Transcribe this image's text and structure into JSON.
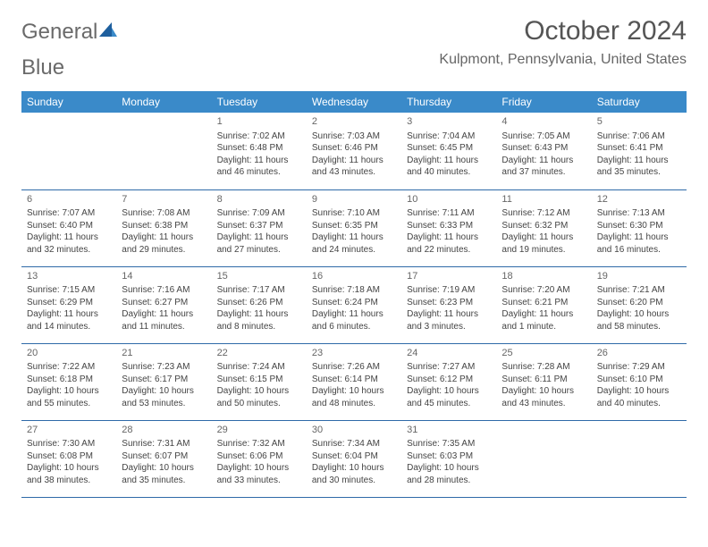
{
  "logo": {
    "word1": "General",
    "word2": "Blue"
  },
  "title": "October 2024",
  "location": "Kulpmont, Pennsylvania, United States",
  "colors": {
    "header_bg": "#3a8ac9",
    "rule": "#2f6aa8",
    "text": "#444444"
  },
  "weekdays": [
    "Sunday",
    "Monday",
    "Tuesday",
    "Wednesday",
    "Thursday",
    "Friday",
    "Saturday"
  ],
  "weeks": [
    [
      null,
      null,
      {
        "n": "1",
        "r": "Sunrise: 7:02 AM",
        "s": "Sunset: 6:48 PM",
        "d1": "Daylight: 11 hours",
        "d2": "and 46 minutes."
      },
      {
        "n": "2",
        "r": "Sunrise: 7:03 AM",
        "s": "Sunset: 6:46 PM",
        "d1": "Daylight: 11 hours",
        "d2": "and 43 minutes."
      },
      {
        "n": "3",
        "r": "Sunrise: 7:04 AM",
        "s": "Sunset: 6:45 PM",
        "d1": "Daylight: 11 hours",
        "d2": "and 40 minutes."
      },
      {
        "n": "4",
        "r": "Sunrise: 7:05 AM",
        "s": "Sunset: 6:43 PM",
        "d1": "Daylight: 11 hours",
        "d2": "and 37 minutes."
      },
      {
        "n": "5",
        "r": "Sunrise: 7:06 AM",
        "s": "Sunset: 6:41 PM",
        "d1": "Daylight: 11 hours",
        "d2": "and 35 minutes."
      }
    ],
    [
      {
        "n": "6",
        "r": "Sunrise: 7:07 AM",
        "s": "Sunset: 6:40 PM",
        "d1": "Daylight: 11 hours",
        "d2": "and 32 minutes."
      },
      {
        "n": "7",
        "r": "Sunrise: 7:08 AM",
        "s": "Sunset: 6:38 PM",
        "d1": "Daylight: 11 hours",
        "d2": "and 29 minutes."
      },
      {
        "n": "8",
        "r": "Sunrise: 7:09 AM",
        "s": "Sunset: 6:37 PM",
        "d1": "Daylight: 11 hours",
        "d2": "and 27 minutes."
      },
      {
        "n": "9",
        "r": "Sunrise: 7:10 AM",
        "s": "Sunset: 6:35 PM",
        "d1": "Daylight: 11 hours",
        "d2": "and 24 minutes."
      },
      {
        "n": "10",
        "r": "Sunrise: 7:11 AM",
        "s": "Sunset: 6:33 PM",
        "d1": "Daylight: 11 hours",
        "d2": "and 22 minutes."
      },
      {
        "n": "11",
        "r": "Sunrise: 7:12 AM",
        "s": "Sunset: 6:32 PM",
        "d1": "Daylight: 11 hours",
        "d2": "and 19 minutes."
      },
      {
        "n": "12",
        "r": "Sunrise: 7:13 AM",
        "s": "Sunset: 6:30 PM",
        "d1": "Daylight: 11 hours",
        "d2": "and 16 minutes."
      }
    ],
    [
      {
        "n": "13",
        "r": "Sunrise: 7:15 AM",
        "s": "Sunset: 6:29 PM",
        "d1": "Daylight: 11 hours",
        "d2": "and 14 minutes."
      },
      {
        "n": "14",
        "r": "Sunrise: 7:16 AM",
        "s": "Sunset: 6:27 PM",
        "d1": "Daylight: 11 hours",
        "d2": "and 11 minutes."
      },
      {
        "n": "15",
        "r": "Sunrise: 7:17 AM",
        "s": "Sunset: 6:26 PM",
        "d1": "Daylight: 11 hours",
        "d2": "and 8 minutes."
      },
      {
        "n": "16",
        "r": "Sunrise: 7:18 AM",
        "s": "Sunset: 6:24 PM",
        "d1": "Daylight: 11 hours",
        "d2": "and 6 minutes."
      },
      {
        "n": "17",
        "r": "Sunrise: 7:19 AM",
        "s": "Sunset: 6:23 PM",
        "d1": "Daylight: 11 hours",
        "d2": "and 3 minutes."
      },
      {
        "n": "18",
        "r": "Sunrise: 7:20 AM",
        "s": "Sunset: 6:21 PM",
        "d1": "Daylight: 11 hours",
        "d2": "and 1 minute."
      },
      {
        "n": "19",
        "r": "Sunrise: 7:21 AM",
        "s": "Sunset: 6:20 PM",
        "d1": "Daylight: 10 hours",
        "d2": "and 58 minutes."
      }
    ],
    [
      {
        "n": "20",
        "r": "Sunrise: 7:22 AM",
        "s": "Sunset: 6:18 PM",
        "d1": "Daylight: 10 hours",
        "d2": "and 55 minutes."
      },
      {
        "n": "21",
        "r": "Sunrise: 7:23 AM",
        "s": "Sunset: 6:17 PM",
        "d1": "Daylight: 10 hours",
        "d2": "and 53 minutes."
      },
      {
        "n": "22",
        "r": "Sunrise: 7:24 AM",
        "s": "Sunset: 6:15 PM",
        "d1": "Daylight: 10 hours",
        "d2": "and 50 minutes."
      },
      {
        "n": "23",
        "r": "Sunrise: 7:26 AM",
        "s": "Sunset: 6:14 PM",
        "d1": "Daylight: 10 hours",
        "d2": "and 48 minutes."
      },
      {
        "n": "24",
        "r": "Sunrise: 7:27 AM",
        "s": "Sunset: 6:12 PM",
        "d1": "Daylight: 10 hours",
        "d2": "and 45 minutes."
      },
      {
        "n": "25",
        "r": "Sunrise: 7:28 AM",
        "s": "Sunset: 6:11 PM",
        "d1": "Daylight: 10 hours",
        "d2": "and 43 minutes."
      },
      {
        "n": "26",
        "r": "Sunrise: 7:29 AM",
        "s": "Sunset: 6:10 PM",
        "d1": "Daylight: 10 hours",
        "d2": "and 40 minutes."
      }
    ],
    [
      {
        "n": "27",
        "r": "Sunrise: 7:30 AM",
        "s": "Sunset: 6:08 PM",
        "d1": "Daylight: 10 hours",
        "d2": "and 38 minutes."
      },
      {
        "n": "28",
        "r": "Sunrise: 7:31 AM",
        "s": "Sunset: 6:07 PM",
        "d1": "Daylight: 10 hours",
        "d2": "and 35 minutes."
      },
      {
        "n": "29",
        "r": "Sunrise: 7:32 AM",
        "s": "Sunset: 6:06 PM",
        "d1": "Daylight: 10 hours",
        "d2": "and 33 minutes."
      },
      {
        "n": "30",
        "r": "Sunrise: 7:34 AM",
        "s": "Sunset: 6:04 PM",
        "d1": "Daylight: 10 hours",
        "d2": "and 30 minutes."
      },
      {
        "n": "31",
        "r": "Sunrise: 7:35 AM",
        "s": "Sunset: 6:03 PM",
        "d1": "Daylight: 10 hours",
        "d2": "and 28 minutes."
      },
      null,
      null
    ]
  ]
}
